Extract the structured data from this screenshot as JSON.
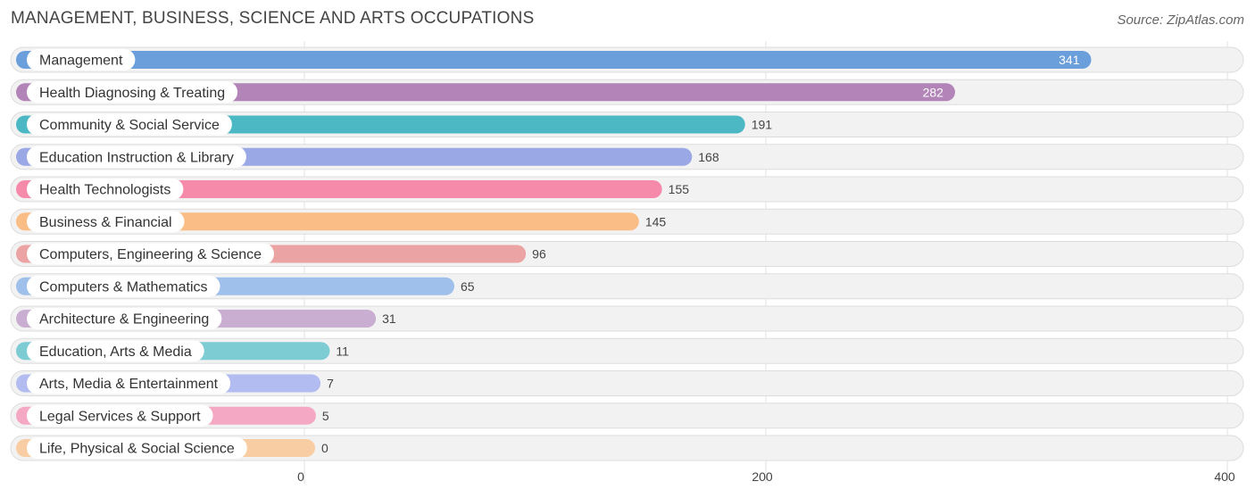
{
  "title": "MANAGEMENT, BUSINESS, SCIENCE AND ARTS OCCUPATIONS",
  "source": "Source: ZipAtlas.com",
  "chart_data": {
    "type": "bar",
    "orientation": "horizontal",
    "categories": [
      "Management",
      "Health Diagnosing & Treating",
      "Community & Social Service",
      "Education Instruction & Library",
      "Health Technologists",
      "Business & Financial",
      "Computers, Engineering & Science",
      "Computers & Mathematics",
      "Architecture & Engineering",
      "Education, Arts & Media",
      "Arts, Media & Entertainment",
      "Legal Services & Support",
      "Life, Physical & Social Science"
    ],
    "values": [
      341,
      282,
      191,
      168,
      155,
      145,
      96,
      65,
      31,
      11,
      7,
      5,
      0
    ],
    "value_labels": [
      "341",
      "282",
      "191",
      "168",
      "155",
      "145",
      "96",
      "65",
      "31",
      "11",
      "7",
      "5",
      "0"
    ],
    "colors": [
      "#6a9fdc",
      "#b384b8",
      "#4cb8c4",
      "#9aa8e6",
      "#f68aab",
      "#f9bd85",
      "#eba3a3",
      "#9fc0ea",
      "#c9aed2",
      "#7dcbd3",
      "#b2bcf0",
      "#f5a8c3",
      "#f9cda4"
    ],
    "xticks": [
      0,
      200,
      400
    ],
    "xtick_labels": [
      "0",
      "200",
      "400"
    ],
    "xlim": [
      0,
      400
    ],
    "grid": true,
    "legend": "none"
  }
}
